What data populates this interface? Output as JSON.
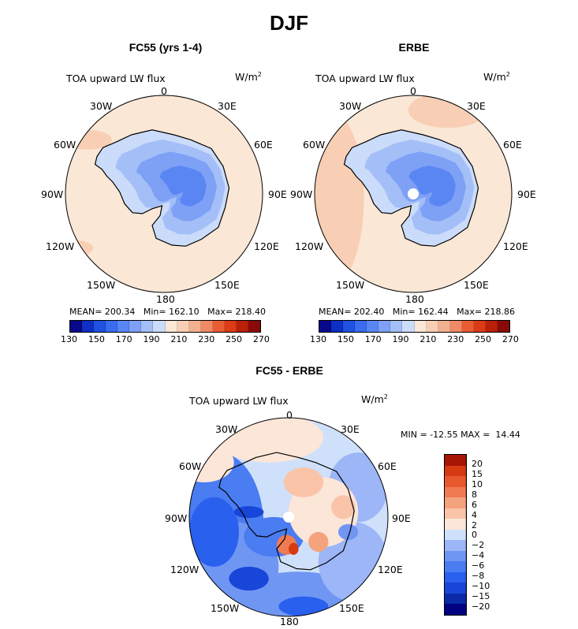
{
  "figure": {
    "title": "DJF",
    "colors": {
      "seq_palette": [
        "#08088a",
        "#0f2fc4",
        "#1f52e0",
        "#3a6cf0",
        "#5a86f4",
        "#7ea1f6",
        "#a4bff8",
        "#cbdcfa",
        "#fbe7d6",
        "#f8cfb4",
        "#f3b090",
        "#f08a64",
        "#ea5d34",
        "#dd3a16",
        "#b92008",
        "#8a0a0a"
      ],
      "diff_palette": [
        "#000080",
        "#0a2aa8",
        "#1846d8",
        "#2a60ee",
        "#4a7cf2",
        "#7096f4",
        "#9cb6f7",
        "#cfe0fa",
        "#fbe6d8",
        "#f9c4a8",
        "#f5a27e",
        "#f07a52",
        "#e8582e",
        "#d63a12",
        "#a81606"
      ],
      "land_outline": "#000000"
    }
  },
  "panels": [
    {
      "id": "fc55",
      "title": "FC55 (yrs 1-4)",
      "variable": "TOA upward LW flux",
      "units": "W/m",
      "units_sup": "2",
      "lon_labels": [
        "0",
        "30E",
        "60E",
        "90E",
        "120E",
        "150E",
        "180",
        "150W",
        "120W",
        "90W",
        "60W",
        "30W"
      ],
      "stats": "MEAN= 200.34   Min= 162.10   Max= 218.40",
      "colorbar_labels": [
        "130",
        "150",
        "170",
        "190",
        "210",
        "230",
        "250",
        "270"
      ]
    },
    {
      "id": "erbe",
      "title": "ERBE",
      "variable": "TOA upward LW flux",
      "units": "W/m",
      "units_sup": "2",
      "lon_labels": [
        "0",
        "30E",
        "60E",
        "90E",
        "120E",
        "150E",
        "180",
        "150W",
        "120W",
        "90W",
        "60W",
        "30W"
      ],
      "stats": "MEAN= 202.40   Min= 162.44   Max= 218.86",
      "colorbar_labels": [
        "130",
        "150",
        "170",
        "190",
        "210",
        "230",
        "250",
        "270"
      ]
    },
    {
      "id": "diff",
      "title": "FC55 - ERBE",
      "variable": "TOA upward LW flux",
      "units": "W/m",
      "units_sup": "2",
      "lon_labels": [
        "0",
        "30E",
        "60E",
        "90E",
        "120E",
        "150E",
        "180",
        "150W",
        "120W",
        "90W",
        "60W",
        "30W"
      ],
      "stats": "MIN = -12.55 MAX =  14.44",
      "colorbar_labels": [
        "20",
        "15",
        "10",
        "8",
        "6",
        "4",
        "2",
        "0",
        "−2",
        "−4",
        "−6",
        "−8",
        "−10",
        "−15",
        "−20"
      ]
    }
  ]
}
